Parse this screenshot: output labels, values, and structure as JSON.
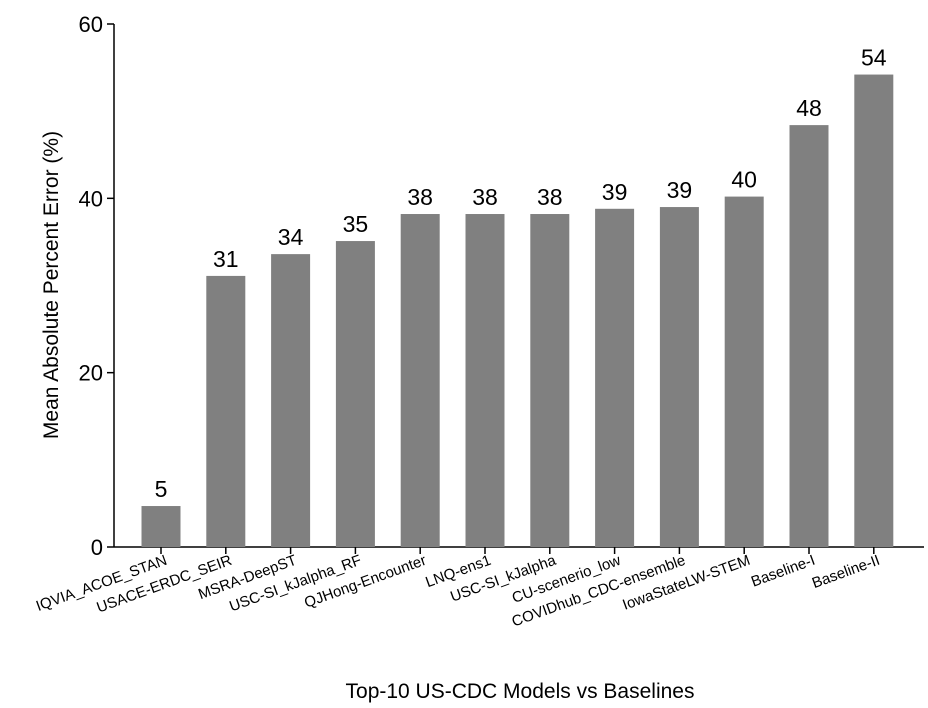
{
  "chart_data": {
    "type": "bar",
    "title": "",
    "xlabel": "Top-10 US-CDC Models vs Baselines",
    "ylabel": "Mean Absolute Percent Error (%)",
    "ylim": [
      0,
      60
    ],
    "yticks": [
      0,
      20,
      40,
      60
    ],
    "grid": false,
    "categories": [
      "IQVIA_ACOE_STAN",
      "USACE-ERDC_SEIR",
      "MSRA-DeepST",
      "USC-SI_kJalpha_RF",
      "QJHong-Encounter",
      "LNQ-ens1",
      "USC-SI_kJalpha",
      "CU-scenerio_low",
      "COVIDhub_CDC-ensemble",
      "IowaStateLW-STEM",
      "Baseline-I",
      "Baseline-II"
    ],
    "values": [
      4.7,
      31.1,
      33.6,
      35.1,
      38.2,
      38.2,
      38.2,
      38.8,
      39.0,
      40.2,
      48.4,
      54.2
    ],
    "data_labels": [
      "5",
      "31",
      "34",
      "35",
      "38",
      "38",
      "38",
      "39",
      "39",
      "40",
      "48",
      "54"
    ],
    "bar_color": "#808080"
  }
}
